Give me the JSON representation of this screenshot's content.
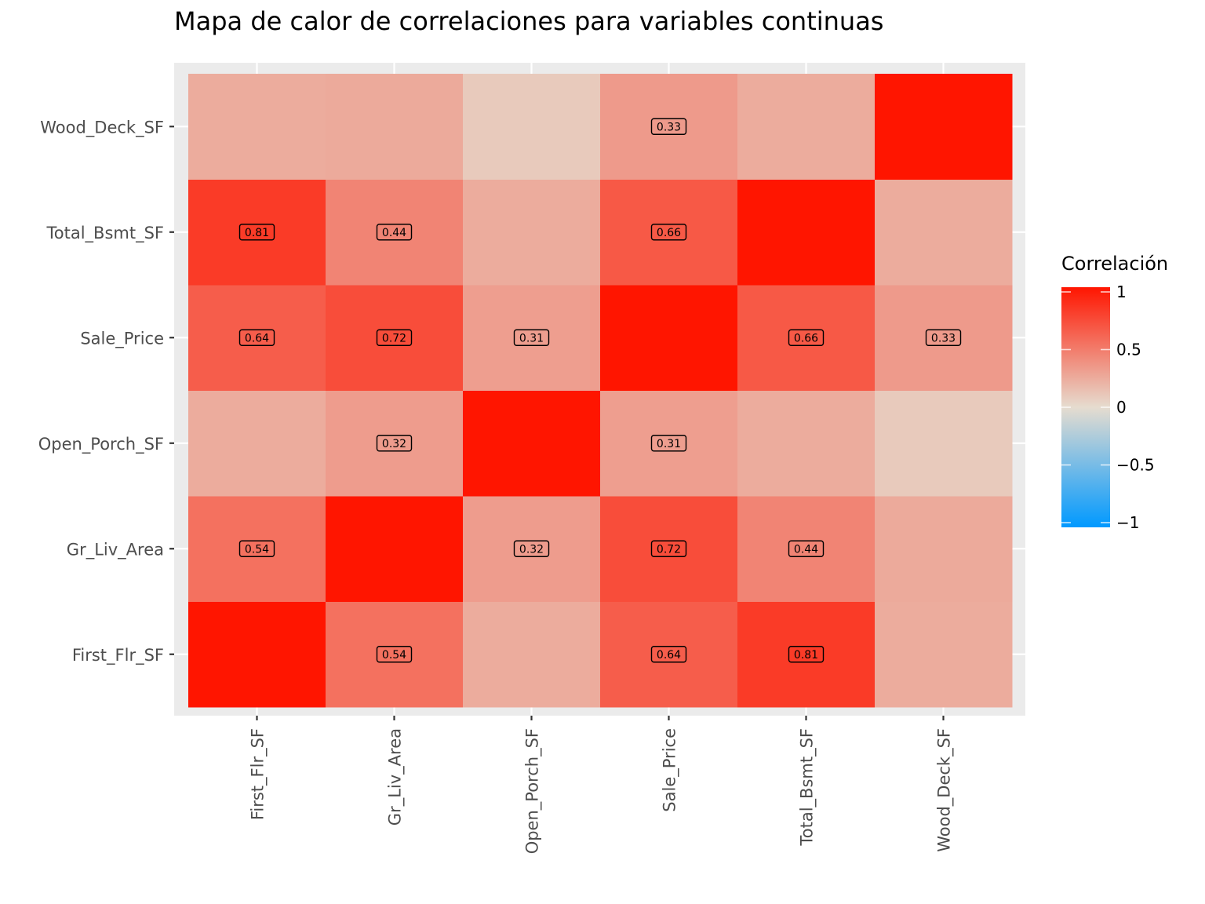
{
  "chart_data": {
    "type": "heatmap",
    "title": "Mapa de calor de correlaciones para variables continuas",
    "xlabel": "",
    "ylabel": "",
    "x_categories": [
      "First_Flr_SF",
      "Gr_Liv_Area",
      "Open_Porch_SF",
      "Sale_Price",
      "Total_Bsmt_SF",
      "Wood_Deck_SF"
    ],
    "y_categories": [
      "First_Flr_SF",
      "Gr_Liv_Area",
      "Open_Porch_SF",
      "Sale_Price",
      "Total_Bsmt_SF",
      "Wood_Deck_SF"
    ],
    "values": [
      [
        1.0,
        0.54,
        0.24,
        0.64,
        0.81,
        0.24
      ],
      [
        0.54,
        1.0,
        0.32,
        0.72,
        0.44,
        0.25
      ],
      [
        0.24,
        0.32,
        1.0,
        0.31,
        0.24,
        0.09
      ],
      [
        0.64,
        0.72,
        0.31,
        1.0,
        0.66,
        0.33
      ],
      [
        0.81,
        0.44,
        0.24,
        0.66,
        1.0,
        0.24
      ],
      [
        0.24,
        0.25,
        0.09,
        0.33,
        0.24,
        1.0
      ]
    ],
    "label_threshold": 0.3,
    "legend": {
      "title": "Correlación",
      "ticks": [
        1,
        0.5,
        0,
        -0.5,
        -1
      ],
      "tick_labels": [
        "1",
        "0.5",
        "0",
        "−0.5",
        "−1"
      ],
      "range": [
        -1,
        1
      ],
      "colors": {
        "low": "#0099ff",
        "mid": "#e6dccf",
        "high": "#ff1500"
      },
      "placement": "right"
    },
    "panel_background": "#ebebeb",
    "grid": true
  }
}
